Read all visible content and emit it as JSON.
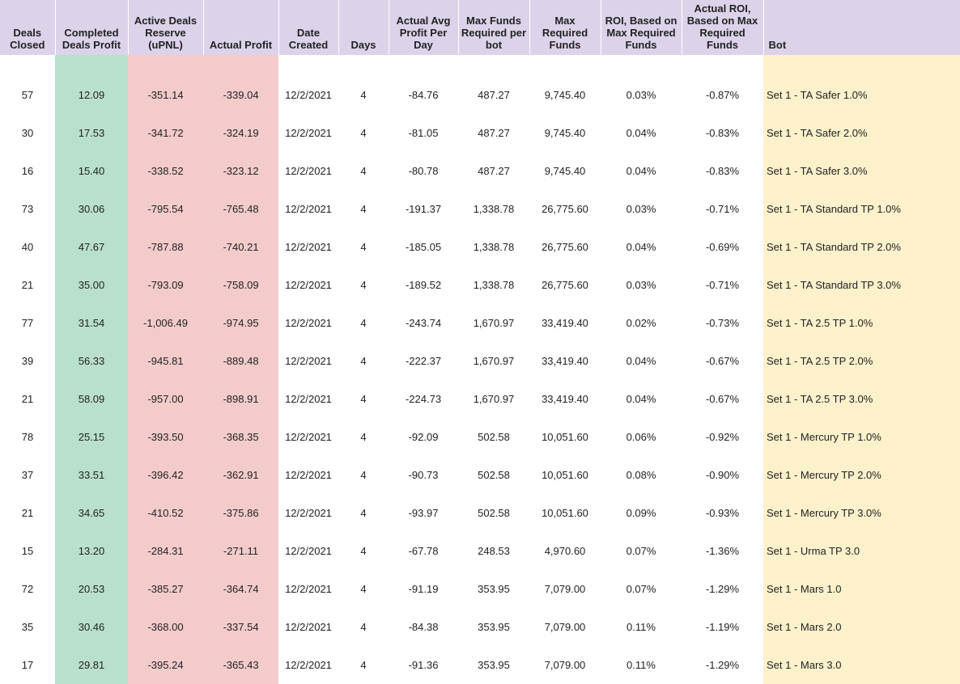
{
  "headers": {
    "deals_closed": "Deals Closed",
    "completed_profit": "Completed Deals Profit",
    "active_reserve": "Active Deals Reserve (uPNL)",
    "actual_profit": "Actual Profit",
    "date_created": "Date Created",
    "days": "Days",
    "avg_profit_day": "Actual Avg Profit Per Day",
    "max_funds_bot": "Max Funds Required per bot",
    "max_required_funds": "Max Required Funds",
    "roi": "ROI, Based on Max Required Funds",
    "actual_roi": "Actual ROI, Based on Max Required Funds",
    "bot": "Bot"
  },
  "colors": {
    "header_bg": "#dcd3ea",
    "completed_profit_bg": "#b9e0cc",
    "reserve_profit_bg": "#f3cbcb",
    "bot_bg": "#fdf1cc"
  },
  "rows": [
    {
      "deals_closed": "57",
      "completed_profit": "12.09",
      "active_reserve": "-351.14",
      "actual_profit": "-339.04",
      "date_created": "12/2/2021",
      "days": "4",
      "avg_profit_day": "-84.76",
      "max_funds_bot": "487.27",
      "max_required_funds": "9,745.40",
      "roi": "0.03%",
      "actual_roi": "-0.87%",
      "bot": "Set 1 - TA Safer 1.0%"
    },
    {
      "deals_closed": "30",
      "completed_profit": "17.53",
      "active_reserve": "-341.72",
      "actual_profit": "-324.19",
      "date_created": "12/2/2021",
      "days": "4",
      "avg_profit_day": "-81.05",
      "max_funds_bot": "487.27",
      "max_required_funds": "9,745.40",
      "roi": "0.04%",
      "actual_roi": "-0.83%",
      "bot": "Set 1 - TA Safer 2.0%"
    },
    {
      "deals_closed": "16",
      "completed_profit": "15.40",
      "active_reserve": "-338.52",
      "actual_profit": "-323.12",
      "date_created": "12/2/2021",
      "days": "4",
      "avg_profit_day": "-80.78",
      "max_funds_bot": "487.27",
      "max_required_funds": "9,745.40",
      "roi": "0.04%",
      "actual_roi": "-0.83%",
      "bot": "Set 1 - TA Safer 3.0%"
    },
    {
      "deals_closed": "73",
      "completed_profit": "30.06",
      "active_reserve": "-795.54",
      "actual_profit": "-765.48",
      "date_created": "12/2/2021",
      "days": "4",
      "avg_profit_day": "-191.37",
      "max_funds_bot": "1,338.78",
      "max_required_funds": "26,775.60",
      "roi": "0.03%",
      "actual_roi": "-0.71%",
      "bot": "Set 1 - TA Standard TP 1.0%"
    },
    {
      "deals_closed": "40",
      "completed_profit": "47.67",
      "active_reserve": "-787.88",
      "actual_profit": "-740.21",
      "date_created": "12/2/2021",
      "days": "4",
      "avg_profit_day": "-185.05",
      "max_funds_bot": "1,338.78",
      "max_required_funds": "26,775.60",
      "roi": "0.04%",
      "actual_roi": "-0.69%",
      "bot": "Set 1 - TA Standard TP 2.0%"
    },
    {
      "deals_closed": "21",
      "completed_profit": "35.00",
      "active_reserve": "-793.09",
      "actual_profit": "-758.09",
      "date_created": "12/2/2021",
      "days": "4",
      "avg_profit_day": "-189.52",
      "max_funds_bot": "1,338.78",
      "max_required_funds": "26,775.60",
      "roi": "0.03%",
      "actual_roi": "-0.71%",
      "bot": "Set 1 - TA Standard TP 3.0%"
    },
    {
      "deals_closed": "77",
      "completed_profit": "31.54",
      "active_reserve": "-1,006.49",
      "actual_profit": "-974.95",
      "date_created": "12/2/2021",
      "days": "4",
      "avg_profit_day": "-243.74",
      "max_funds_bot": "1,670.97",
      "max_required_funds": "33,419.40",
      "roi": "0.02%",
      "actual_roi": "-0.73%",
      "bot": "Set 1 - TA 2.5 TP 1.0%"
    },
    {
      "deals_closed": "39",
      "completed_profit": "56.33",
      "active_reserve": "-945.81",
      "actual_profit": "-889.48",
      "date_created": "12/2/2021",
      "days": "4",
      "avg_profit_day": "-222.37",
      "max_funds_bot": "1,670.97",
      "max_required_funds": "33,419.40",
      "roi": "0.04%",
      "actual_roi": "-0.67%",
      "bot": "Set 1 - TA 2.5 TP 2.0%"
    },
    {
      "deals_closed": "21",
      "completed_profit": "58.09",
      "active_reserve": "-957.00",
      "actual_profit": "-898.91",
      "date_created": "12/2/2021",
      "days": "4",
      "avg_profit_day": "-224.73",
      "max_funds_bot": "1,670.97",
      "max_required_funds": "33,419.40",
      "roi": "0.04%",
      "actual_roi": "-0.67%",
      "bot": "Set 1 - TA 2.5 TP 3.0%"
    },
    {
      "deals_closed": "78",
      "completed_profit": "25.15",
      "active_reserve": "-393.50",
      "actual_profit": "-368.35",
      "date_created": "12/2/2021",
      "days": "4",
      "avg_profit_day": "-92.09",
      "max_funds_bot": "502.58",
      "max_required_funds": "10,051.60",
      "roi": "0.06%",
      "actual_roi": "-0.92%",
      "bot": "Set 1 - Mercury TP 1.0%"
    },
    {
      "deals_closed": "37",
      "completed_profit": "33.51",
      "active_reserve": "-396.42",
      "actual_profit": "-362.91",
      "date_created": "12/2/2021",
      "days": "4",
      "avg_profit_day": "-90.73",
      "max_funds_bot": "502.58",
      "max_required_funds": "10,051.60",
      "roi": "0.08%",
      "actual_roi": "-0.90%",
      "bot": "Set 1 - Mercury TP 2.0%"
    },
    {
      "deals_closed": "21",
      "completed_profit": "34.65",
      "active_reserve": "-410.52",
      "actual_profit": "-375.86",
      "date_created": "12/2/2021",
      "days": "4",
      "avg_profit_day": "-93.97",
      "max_funds_bot": "502.58",
      "max_required_funds": "10,051.60",
      "roi": "0.09%",
      "actual_roi": "-0.93%",
      "bot": "Set 1 - Mercury TP 3.0%"
    },
    {
      "deals_closed": "15",
      "completed_profit": "13.20",
      "active_reserve": "-284.31",
      "actual_profit": "-271.11",
      "date_created": "12/2/2021",
      "days": "4",
      "avg_profit_day": "-67.78",
      "max_funds_bot": "248.53",
      "max_required_funds": "4,970.60",
      "roi": "0.07%",
      "actual_roi": "-1.36%",
      "bot": "Set 1 - Urma TP 3.0"
    },
    {
      "deals_closed": "72",
      "completed_profit": "20.53",
      "active_reserve": "-385.27",
      "actual_profit": "-364.74",
      "date_created": "12/2/2021",
      "days": "4",
      "avg_profit_day": "-91.19",
      "max_funds_bot": "353.95",
      "max_required_funds": "7,079.00",
      "roi": "0.07%",
      "actual_roi": "-1.29%",
      "bot": "Set 1 - Mars 1.0"
    },
    {
      "deals_closed": "35",
      "completed_profit": "30.46",
      "active_reserve": "-368.00",
      "actual_profit": "-337.54",
      "date_created": "12/2/2021",
      "days": "4",
      "avg_profit_day": "-84.38",
      "max_funds_bot": "353.95",
      "max_required_funds": "7,079.00",
      "roi": "0.11%",
      "actual_roi": "-1.19%",
      "bot": "Set 1 - Mars 2.0"
    },
    {
      "deals_closed": "17",
      "completed_profit": "29.81",
      "active_reserve": "-395.24",
      "actual_profit": "-365.43",
      "date_created": "12/2/2021",
      "days": "4",
      "avg_profit_day": "-91.36",
      "max_funds_bot": "353.95",
      "max_required_funds": "7,079.00",
      "roi": "0.11%",
      "actual_roi": "-1.29%",
      "bot": "Set 1 - Mars 3.0"
    }
  ]
}
